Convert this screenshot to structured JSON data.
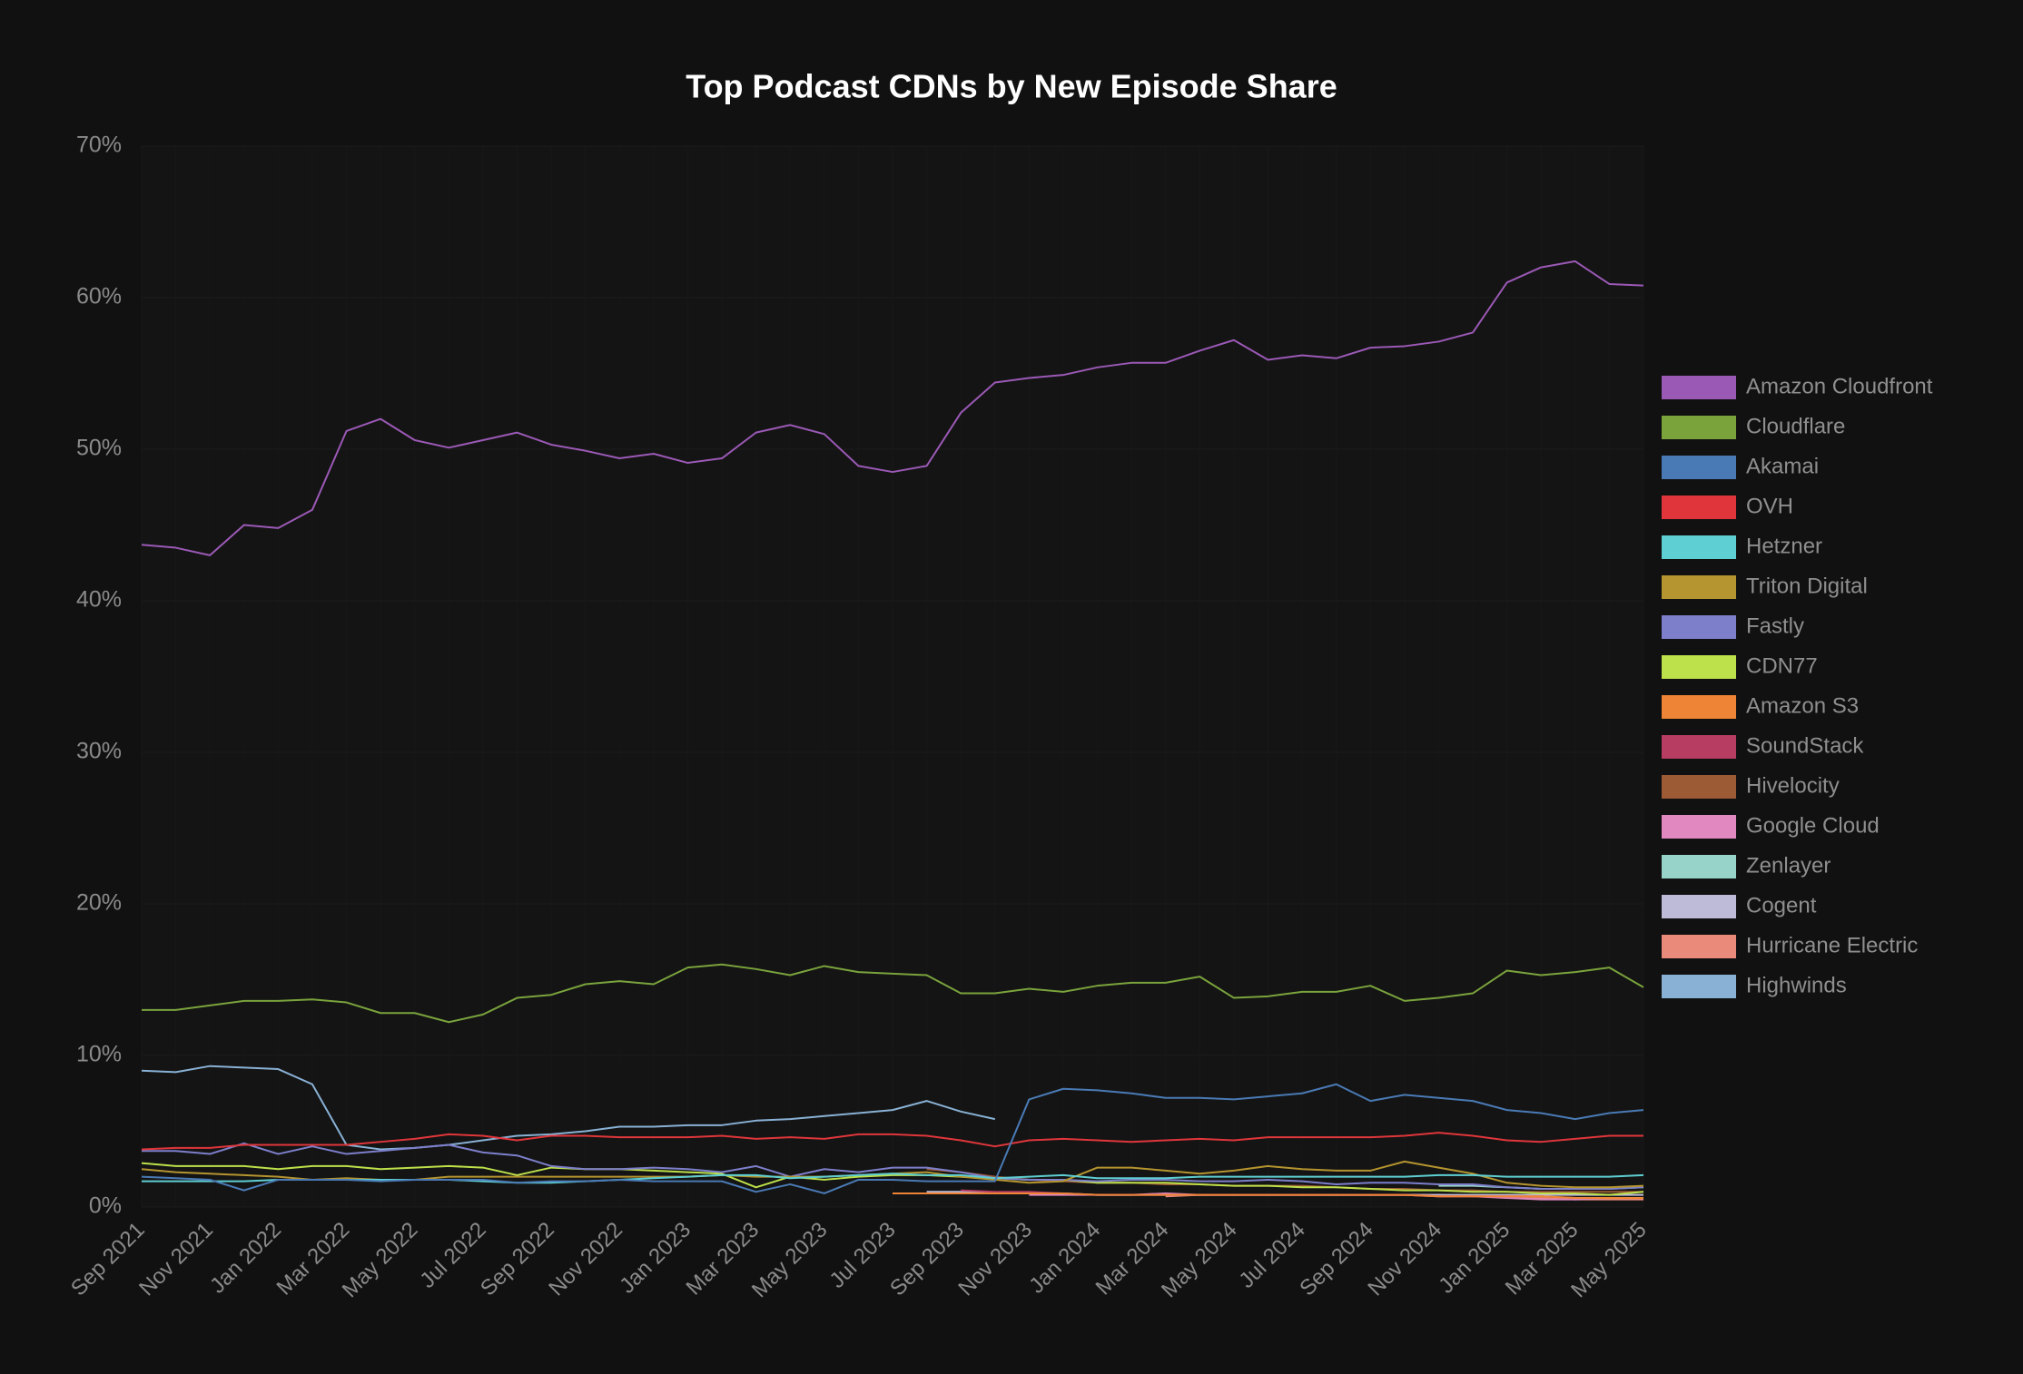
{
  "chart_data": {
    "type": "line",
    "title": "Top Podcast CDNs by New Episode Share",
    "categories": [
      "Sep 2021",
      null,
      "Nov 2021",
      null,
      "Jan 2022",
      null,
      "Mar 2022",
      null,
      "May 2022",
      null,
      "Jul 2022",
      null,
      "Sep 2022",
      null,
      "Nov 2022",
      null,
      "Jan 2023",
      null,
      "Mar 2023",
      null,
      "May 2023",
      null,
      "Jul 2023",
      null,
      "Sep 2023",
      null,
      "Nov 2023",
      null,
      "Jan 2024",
      null,
      "Mar 2024",
      null,
      "May 2024",
      null,
      "Jul 2024",
      null,
      "Sep 2024",
      null,
      "Nov 2024",
      null,
      "Jan 2025",
      null,
      "Mar 2025",
      null,
      "May 2025"
    ],
    "ylim": [
      0,
      70
    ],
    "yticks": [
      {
        "value": 0,
        "label": "0%"
      },
      {
        "value": 10,
        "label": "10%"
      },
      {
        "value": 20,
        "label": "20%"
      },
      {
        "value": 30,
        "label": "30%"
      },
      {
        "value": 40,
        "label": "40%"
      },
      {
        "value": 50,
        "label": "50%"
      },
      {
        "value": 60,
        "label": "60%"
      },
      {
        "value": 70,
        "label": "70%"
      }
    ],
    "grid": true,
    "legend": "right",
    "series": [
      {
        "name": "Amazon Cloudfront",
        "color": "#9b59b6",
        "values": [
          43.7,
          43.5,
          43.0,
          45.0,
          44.8,
          46.0,
          51.2,
          52.0,
          50.6,
          50.1,
          50.6,
          51.1,
          50.3,
          49.9,
          49.4,
          49.7,
          49.1,
          49.4,
          51.1,
          51.6,
          51.0,
          48.9,
          48.5,
          48.9,
          52.4,
          54.4,
          54.7,
          54.9,
          55.4,
          55.7,
          55.7,
          56.5,
          57.2,
          55.9,
          56.2,
          56.0,
          56.7,
          56.8,
          57.1,
          57.7,
          61.0,
          62.0,
          62.4,
          60.9,
          60.8
        ]
      },
      {
        "name": "Cloudflare",
        "color": "#7aa33c",
        "values": [
          13.0,
          13.0,
          13.3,
          13.6,
          13.6,
          13.7,
          13.5,
          12.8,
          12.8,
          12.2,
          12.7,
          13.8,
          14.0,
          14.7,
          14.9,
          14.7,
          15.8,
          16.0,
          15.7,
          15.3,
          15.9,
          15.5,
          15.4,
          15.3,
          14.1,
          14.1,
          14.4,
          14.2,
          14.6,
          14.8,
          14.8,
          15.2,
          13.8,
          13.9,
          14.2,
          14.2,
          14.6,
          13.6,
          13.8,
          14.1,
          15.6,
          15.3,
          15.5,
          15.8,
          14.5
        ]
      },
      {
        "name": "Akamai",
        "color": "#4a7ab5",
        "values": [
          2.0,
          1.9,
          1.8,
          1.1,
          1.8,
          1.8,
          1.8,
          1.7,
          1.8,
          1.8,
          1.8,
          1.6,
          1.7,
          1.7,
          1.8,
          1.7,
          1.7,
          1.7,
          1.0,
          1.5,
          0.9,
          1.8,
          1.8,
          1.7,
          1.7,
          1.7,
          7.1,
          7.8,
          7.7,
          7.5,
          7.2,
          7.2,
          7.1,
          7.3,
          7.5,
          8.1,
          7.0,
          7.4,
          7.2,
          7.0,
          6.4,
          6.2,
          5.8,
          6.2,
          6.4
        ]
      },
      {
        "name": "OVH",
        "color": "#e0363b",
        "values": [
          3.8,
          3.9,
          3.9,
          4.1,
          4.1,
          4.1,
          4.1,
          4.3,
          4.5,
          4.8,
          4.7,
          4.4,
          4.7,
          4.7,
          4.6,
          4.6,
          4.6,
          4.7,
          4.5,
          4.6,
          4.5,
          4.8,
          4.8,
          4.7,
          4.4,
          4.0,
          4.4,
          4.5,
          4.4,
          4.3,
          4.4,
          4.5,
          4.4,
          4.6,
          4.6,
          4.6,
          4.6,
          4.7,
          4.9,
          4.7,
          4.4,
          4.3,
          4.5,
          4.7,
          4.7
        ]
      },
      {
        "name": "Hetzner",
        "color": "#5ecfd3",
        "values": [
          1.7,
          1.7,
          1.7,
          1.7,
          1.8,
          1.8,
          1.8,
          1.8,
          1.8,
          1.8,
          1.7,
          1.6,
          1.6,
          1.7,
          1.8,
          1.9,
          2.0,
          2.1,
          2.1,
          1.9,
          2.0,
          2.1,
          2.2,
          2.1,
          2.1,
          1.9,
          2.0,
          2.1,
          1.9,
          1.9,
          1.9,
          2.0,
          2.0,
          2.0,
          2.0,
          2.0,
          2.0,
          2.0,
          2.1,
          2.1,
          2.0,
          2.0,
          2.0,
          2.0,
          2.1
        ]
      },
      {
        "name": "Triton Digital",
        "color": "#b5952f",
        "values": [
          2.5,
          2.3,
          2.2,
          2.1,
          2.0,
          1.8,
          1.9,
          1.8,
          1.8,
          2.0,
          2.0,
          2.0,
          2.0,
          2.0,
          2.0,
          2.0,
          2.0,
          2.1,
          2.0,
          2.0,
          2.0,
          2.1,
          2.2,
          2.3,
          2.0,
          1.8,
          1.6,
          1.7,
          2.6,
          2.6,
          2.4,
          2.2,
          2.4,
          2.7,
          2.5,
          2.4,
          2.4,
          3.0,
          2.6,
          2.2,
          1.6,
          1.4,
          1.3,
          1.3,
          1.4
        ]
      },
      {
        "name": "Fastly",
        "color": "#7d7fcb",
        "values": [
          3.7,
          3.7,
          3.5,
          4.2,
          3.5,
          4.0,
          3.5,
          3.7,
          3.9,
          4.1,
          3.6,
          3.4,
          2.7,
          2.5,
          2.5,
          2.6,
          2.5,
          2.3,
          2.7,
          2.0,
          2.5,
          2.3,
          2.6,
          2.6,
          2.3,
          1.9,
          1.8,
          1.8,
          1.7,
          1.8,
          1.8,
          1.7,
          1.7,
          1.8,
          1.7,
          1.5,
          1.6,
          1.6,
          1.5,
          1.5,
          1.3,
          1.2,
          1.2,
          1.2,
          1.3
        ]
      },
      {
        "name": "CDN77",
        "color": "#bde14a",
        "values": [
          2.9,
          2.7,
          2.7,
          2.7,
          2.5,
          2.7,
          2.7,
          2.5,
          2.6,
          2.7,
          2.6,
          2.1,
          2.6,
          2.5,
          2.5,
          2.4,
          2.3,
          2.2,
          1.3,
          2.0,
          1.8,
          2.0,
          2.1,
          2.1,
          2.0,
          1.9,
          1.8,
          1.8,
          1.6,
          1.6,
          1.6,
          1.5,
          1.4,
          1.4,
          1.3,
          1.3,
          1.2,
          1.1,
          1.1,
          1.0,
          1.0,
          0.9,
          0.9,
          0.8,
          1.0
        ]
      },
      {
        "name": "Amazon S3",
        "color": "#ee8435",
        "values": [
          null,
          null,
          null,
          null,
          null,
          null,
          null,
          null,
          null,
          null,
          null,
          null,
          null,
          null,
          null,
          null,
          null,
          null,
          null,
          null,
          null,
          null,
          0.9,
          0.9,
          0.9,
          0.9,
          0.9,
          0.9,
          0.8,
          0.8,
          0.8,
          0.8,
          0.8,
          0.8,
          0.8,
          0.8,
          0.8,
          0.8,
          0.7,
          0.7,
          0.7,
          0.7,
          0.6,
          0.6,
          0.6
        ]
      },
      {
        "name": "SoundStack",
        "color": "#b83d62",
        "values": [
          null,
          null,
          null,
          null,
          null,
          null,
          null,
          null,
          null,
          null,
          null,
          null,
          null,
          null,
          null,
          null,
          null,
          null,
          null,
          null,
          null,
          null,
          null,
          null,
          1.1,
          1.0,
          1.0,
          0.9,
          0.8,
          0.8,
          0.8,
          0.8,
          0.8,
          0.8,
          0.8,
          0.8,
          0.8,
          0.8,
          0.7,
          0.7,
          0.7,
          0.7,
          0.6,
          0.6,
          0.6
        ]
      },
      {
        "name": "Hivelocity",
        "color": "#9c5a35",
        "values": [
          null,
          null,
          null,
          null,
          null,
          null,
          null,
          null,
          null,
          null,
          null,
          null,
          null,
          null,
          null,
          null,
          null,
          null,
          null,
          null,
          null,
          null,
          null,
          2.5,
          2.3,
          2.0,
          1.8,
          1.7,
          1.6,
          1.6,
          1.5,
          1.5,
          1.4,
          1.4,
          1.4,
          1.3,
          1.2,
          1.2,
          1.1,
          1.1,
          1.0,
          1.0,
          1.0,
          1.0,
          1.0
        ]
      },
      {
        "name": "Google Cloud",
        "color": "#e188c0",
        "values": [
          null,
          null,
          null,
          null,
          null,
          null,
          null,
          null,
          null,
          null,
          null,
          null,
          null,
          null,
          null,
          null,
          null,
          null,
          null,
          null,
          null,
          null,
          null,
          null,
          null,
          null,
          0.8,
          0.8,
          0.8,
          0.8,
          0.9,
          0.8,
          0.8,
          0.8,
          0.8,
          0.8,
          0.8,
          0.8,
          0.7,
          0.7,
          0.6,
          0.5,
          0.5,
          0.6,
          0.6
        ]
      },
      {
        "name": "Zenlayer",
        "color": "#97d3c8",
        "values": [
          null,
          null,
          null,
          null,
          null,
          null,
          null,
          null,
          null,
          null,
          null,
          null,
          null,
          null,
          null,
          null,
          null,
          null,
          null,
          null,
          null,
          null,
          null,
          null,
          null,
          null,
          null,
          null,
          null,
          null,
          null,
          null,
          null,
          null,
          null,
          null,
          null,
          null,
          1.4,
          1.4,
          1.3,
          1.2,
          1.2,
          1.2,
          1.3
        ]
      },
      {
        "name": "Cogent",
        "color": "#bdbbd8",
        "values": [
          null,
          null,
          null,
          null,
          null,
          null,
          null,
          null,
          null,
          null,
          null,
          null,
          null,
          null,
          null,
          null,
          null,
          null,
          null,
          null,
          null,
          null,
          null,
          1.0,
          1.0,
          0.9,
          0.9,
          0.9,
          0.8,
          0.8,
          0.8,
          0.8,
          0.8,
          0.8,
          0.8,
          0.8,
          0.8,
          0.8,
          0.8,
          0.8,
          0.8,
          0.8,
          0.8,
          0.8,
          0.8
        ]
      },
      {
        "name": "Hurricane Electric",
        "color": "#ea8a7a",
        "values": [
          null,
          null,
          null,
          null,
          null,
          null,
          null,
          null,
          null,
          null,
          null,
          null,
          null,
          null,
          null,
          null,
          null,
          null,
          null,
          null,
          null,
          null,
          null,
          null,
          null,
          null,
          null,
          null,
          null,
          null,
          0.7,
          0.8,
          0.8,
          0.8,
          0.8,
          0.8,
          0.8,
          0.8,
          0.8,
          0.7,
          0.7,
          0.6,
          0.5,
          0.5,
          0.5
        ]
      },
      {
        "name": "Highwinds",
        "color": "#89b1d5",
        "values": [
          9.0,
          8.9,
          9.3,
          9.2,
          9.1,
          8.1,
          4.1,
          3.8,
          3.9,
          4.1,
          4.4,
          4.7,
          4.8,
          5.0,
          5.3,
          5.3,
          5.4,
          5.4,
          5.7,
          5.8,
          6.0,
          6.2,
          6.4,
          7.0,
          6.3,
          5.8,
          null,
          null,
          null,
          null,
          null,
          null,
          null,
          null,
          null,
          null,
          null,
          null,
          null,
          null,
          null,
          null,
          null,
          null,
          null
        ]
      }
    ]
  }
}
